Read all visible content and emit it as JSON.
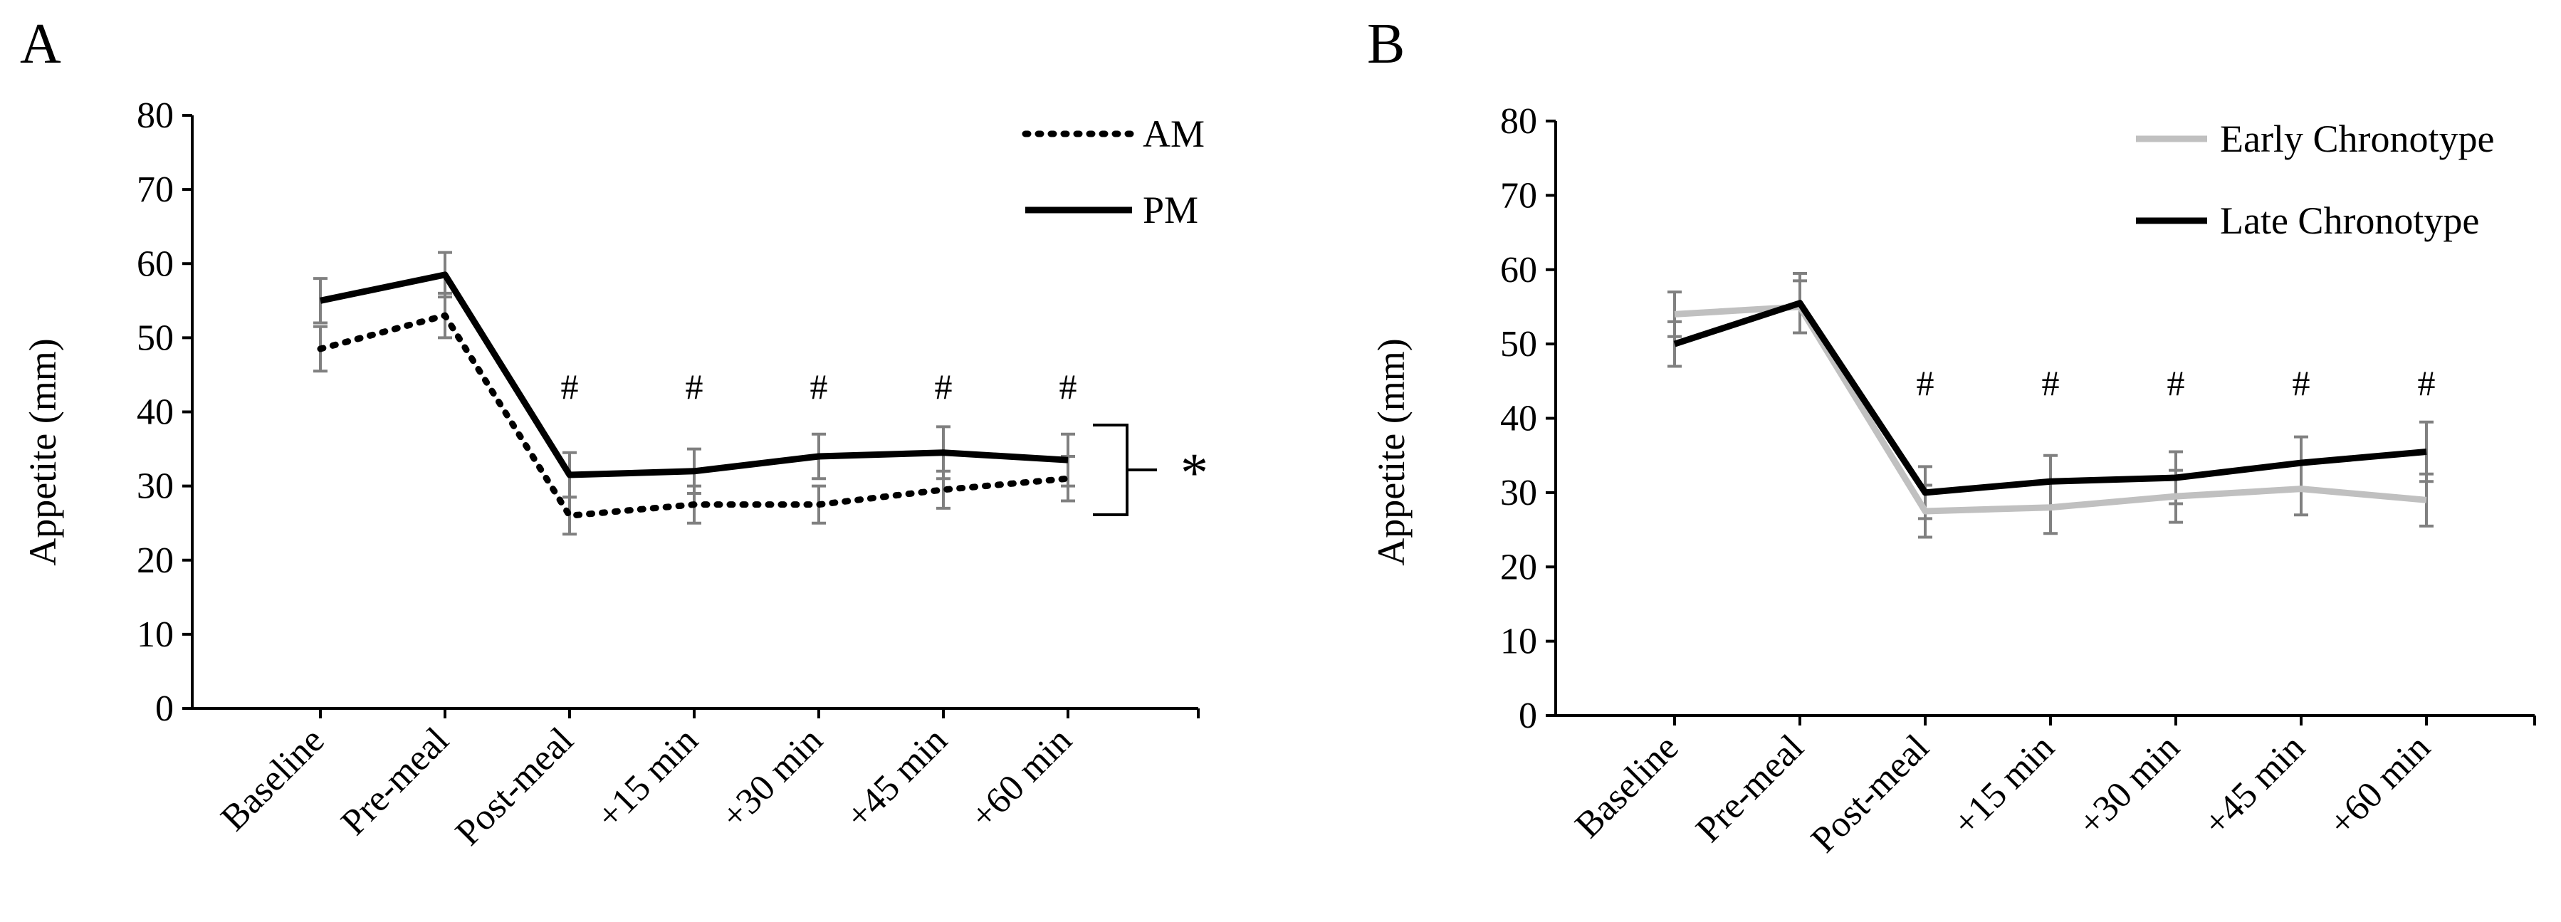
{
  "figure": {
    "colors": {
      "black": "#000000",
      "grey_line": "#c0c0c0",
      "error_bar": "#808080"
    }
  },
  "chart_data": [
    {
      "panel": "A",
      "type": "line",
      "ylabel": "Appetite (mm)",
      "xlabel": "",
      "ylim": [
        0,
        80
      ],
      "yticks": [
        0,
        10,
        20,
        30,
        40,
        50,
        60,
        70,
        80
      ],
      "categories": [
        "Baseline",
        "Pre-meal",
        "Post-meal",
        "+15 min",
        "+30 min",
        "+45 min",
        "+60 min"
      ],
      "series": [
        {
          "name": "AM",
          "style": "dotted",
          "color": "#000000",
          "values": [
            48.5,
            53,
            26,
            27.5,
            27.5,
            29.5,
            31
          ],
          "errors": [
            3,
            3,
            2.5,
            2.5,
            2.5,
            2.5,
            3
          ]
        },
        {
          "name": "PM",
          "style": "solid",
          "color": "#000000",
          "values": [
            55,
            58.5,
            31.5,
            32,
            34,
            34.5,
            33.5
          ],
          "errors": [
            3,
            3,
            3,
            3,
            3,
            3.5,
            3.5
          ]
        }
      ],
      "annotations": {
        "hash_symbol": "#",
        "hash_categories": [
          "Post-meal",
          "+15 min",
          "+30 min",
          "+45 min",
          "+60 min"
        ],
        "significance": "*"
      },
      "legend_position": "top-right"
    },
    {
      "panel": "B",
      "type": "line",
      "ylabel": "Appetite (mm)",
      "xlabel": "",
      "ylim": [
        0,
        80
      ],
      "yticks": [
        0,
        10,
        20,
        30,
        40,
        50,
        60,
        70,
        80
      ],
      "categories": [
        "Baseline",
        "Pre-meal",
        "Post-meal",
        "+15 min",
        "+30 min",
        "+45 min",
        "+60 min"
      ],
      "series": [
        {
          "name": "Early Chronotype",
          "style": "solid",
          "color": "#c0c0c0",
          "values": [
            54,
            55,
            27.5,
            28,
            29.5,
            30.5,
            29
          ],
          "errors": [
            3,
            3.5,
            3.5,
            3.5,
            3.5,
            3.5,
            3.5
          ]
        },
        {
          "name": "Late Chronotype",
          "style": "solid",
          "color": "#000000",
          "values": [
            50,
            55.5,
            30,
            31.5,
            32,
            34,
            35.5
          ],
          "errors": [
            3,
            4,
            3.5,
            3.5,
            3.5,
            3.5,
            4
          ]
        }
      ],
      "annotations": {
        "hash_symbol": "#",
        "hash_categories": [
          "Post-meal",
          "+15 min",
          "+30 min",
          "+45 min",
          "+60 min"
        ]
      },
      "legend_position": "top-right"
    }
  ]
}
